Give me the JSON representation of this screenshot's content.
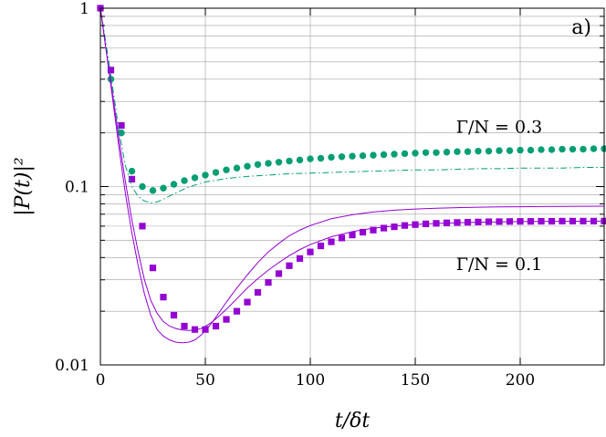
{
  "chart_data": {
    "type": "line",
    "panel_label": "a)",
    "xlabel": "t/δt",
    "ylabel": "|P(t)|²",
    "xlim": [
      0,
      240
    ],
    "ylim": [
      0.01,
      1
    ],
    "yscale": "log",
    "grid": true,
    "legend": "none",
    "x_ticks": [
      0,
      50,
      100,
      150,
      200
    ],
    "y_ticks": [
      {
        "value": 0.01,
        "label": "0.01"
      },
      {
        "value": 0.1,
        "label": "0.1"
      },
      {
        "value": 1,
        "label": "1"
      }
    ],
    "annotations": [
      {
        "text": "Γ/N = 0.3",
        "x": 190,
        "y": 0.2
      },
      {
        "text": "Γ/N = 0.1",
        "x": 190,
        "y": 0.034
      }
    ],
    "series": [
      {
        "marker": "circle",
        "color": "#009e73",
        "line": "none",
        "x": [
          0,
          5,
          10,
          15,
          20,
          25,
          30,
          35,
          40,
          45,
          50,
          55,
          60,
          65,
          70,
          75,
          80,
          85,
          90,
          95,
          100,
          105,
          110,
          115,
          120,
          125,
          130,
          135,
          140,
          145,
          150,
          155,
          160,
          165,
          170,
          175,
          180,
          185,
          190,
          195,
          200,
          205,
          210,
          215,
          220,
          225,
          230,
          235,
          240
        ],
        "y": [
          1.0,
          0.4,
          0.2,
          0.122,
          0.1,
          0.095,
          0.098,
          0.103,
          0.108,
          0.112,
          0.116,
          0.12,
          0.124,
          0.127,
          0.13,
          0.133,
          0.135,
          0.137,
          0.139,
          0.141,
          0.143,
          0.144,
          0.146,
          0.147,
          0.148,
          0.149,
          0.15,
          0.151,
          0.152,
          0.153,
          0.154,
          0.155,
          0.155,
          0.156,
          0.157,
          0.157,
          0.158,
          0.158,
          0.159,
          0.159,
          0.16,
          0.16,
          0.161,
          0.161,
          0.162,
          0.162,
          0.162,
          0.163,
          0.163
        ]
      },
      {
        "marker": "square",
        "color": "#9400d3",
        "line": "none",
        "x": [
          0,
          5,
          10,
          15,
          20,
          25,
          30,
          35,
          40,
          45,
          50,
          55,
          60,
          65,
          70,
          75,
          80,
          85,
          90,
          95,
          100,
          105,
          110,
          115,
          120,
          125,
          130,
          135,
          140,
          145,
          150,
          155,
          160,
          165,
          170,
          175,
          180,
          185,
          190,
          195,
          200,
          205,
          210,
          215,
          220,
          225,
          230,
          235,
          240
        ],
        "y": [
          1.0,
          0.45,
          0.22,
          0.11,
          0.06,
          0.035,
          0.024,
          0.019,
          0.0165,
          0.0158,
          0.0158,
          0.0165,
          0.018,
          0.02,
          0.0225,
          0.0255,
          0.029,
          0.0325,
          0.036,
          0.0395,
          0.043,
          0.0465,
          0.049,
          0.0515,
          0.0535,
          0.0555,
          0.057,
          0.0585,
          0.0595,
          0.0605,
          0.0612,
          0.0618,
          0.0622,
          0.0626,
          0.0629,
          0.0631,
          0.0633,
          0.0635,
          0.0636,
          0.0637,
          0.0638,
          0.0638,
          0.0639,
          0.0639,
          0.064,
          0.064,
          0.064,
          0.064,
          0.064
        ]
      },
      {
        "marker": "none",
        "color": "#009e73",
        "line": "dash-dot",
        "x": [
          0,
          3,
          6,
          9,
          12,
          15,
          18,
          21,
          24,
          27,
          30,
          35,
          40,
          45,
          50,
          60,
          70,
          80,
          90,
          100,
          110,
          120,
          130,
          140,
          150,
          160,
          170,
          180,
          190,
          200,
          210,
          220,
          230,
          240
        ],
        "y": [
          1.0,
          0.6,
          0.35,
          0.2,
          0.13,
          0.1,
          0.088,
          0.083,
          0.081,
          0.082,
          0.085,
          0.091,
          0.097,
          0.102,
          0.106,
          0.111,
          0.114,
          0.116,
          0.118,
          0.119,
          0.12,
          0.121,
          0.122,
          0.123,
          0.124,
          0.124,
          0.125,
          0.126,
          0.126,
          0.127,
          0.127,
          0.127,
          0.128,
          0.128
        ]
      },
      {
        "marker": "none",
        "color": "#9400d3",
        "line": "solid",
        "x": [
          0,
          3,
          6,
          9,
          12,
          15,
          18,
          21,
          24,
          27,
          30,
          33,
          36,
          39,
          42,
          45,
          48,
          51,
          54,
          57,
          60,
          65,
          70,
          75,
          80,
          85,
          90,
          95,
          100,
          110,
          120,
          130,
          140,
          150,
          160,
          170,
          180,
          190,
          200,
          210,
          220,
          230,
          240
        ],
        "y": [
          1.0,
          0.55,
          0.3,
          0.16,
          0.09,
          0.055,
          0.036,
          0.025,
          0.019,
          0.0158,
          0.0145,
          0.0138,
          0.0134,
          0.0133,
          0.0134,
          0.0138,
          0.0147,
          0.016,
          0.0178,
          0.02,
          0.0225,
          0.027,
          0.032,
          0.0375,
          0.043,
          0.048,
          0.053,
          0.057,
          0.0605,
          0.066,
          0.0695,
          0.072,
          0.0737,
          0.0748,
          0.0756,
          0.0762,
          0.0766,
          0.0769,
          0.0771,
          0.0773,
          0.0774,
          0.0775,
          0.0776
        ]
      },
      {
        "marker": "none",
        "color": "#9400d3",
        "line": "solid",
        "x": [
          0,
          3,
          6,
          9,
          12,
          15,
          18,
          21,
          24,
          27,
          30,
          33,
          36,
          39,
          42,
          45,
          48,
          51,
          54,
          57,
          60,
          65,
          70,
          75,
          80,
          85,
          90,
          95,
          100,
          110,
          120,
          130,
          140,
          150,
          160,
          170,
          180,
          190,
          200,
          210,
          220,
          230,
          240
        ],
        "y": [
          1.0,
          0.55,
          0.32,
          0.18,
          0.105,
          0.065,
          0.043,
          0.03,
          0.023,
          0.0195,
          0.0175,
          0.0165,
          0.016,
          0.0157,
          0.0156,
          0.0157,
          0.016,
          0.0167,
          0.0177,
          0.019,
          0.0205,
          0.0235,
          0.027,
          0.0305,
          0.034,
          0.0375,
          0.041,
          0.0443,
          0.0473,
          0.0523,
          0.0559,
          0.0584,
          0.0601,
          0.0613,
          0.0621,
          0.0627,
          0.0631,
          0.0634,
          0.0636,
          0.0637,
          0.0638,
          0.0639,
          0.064
        ]
      }
    ]
  }
}
